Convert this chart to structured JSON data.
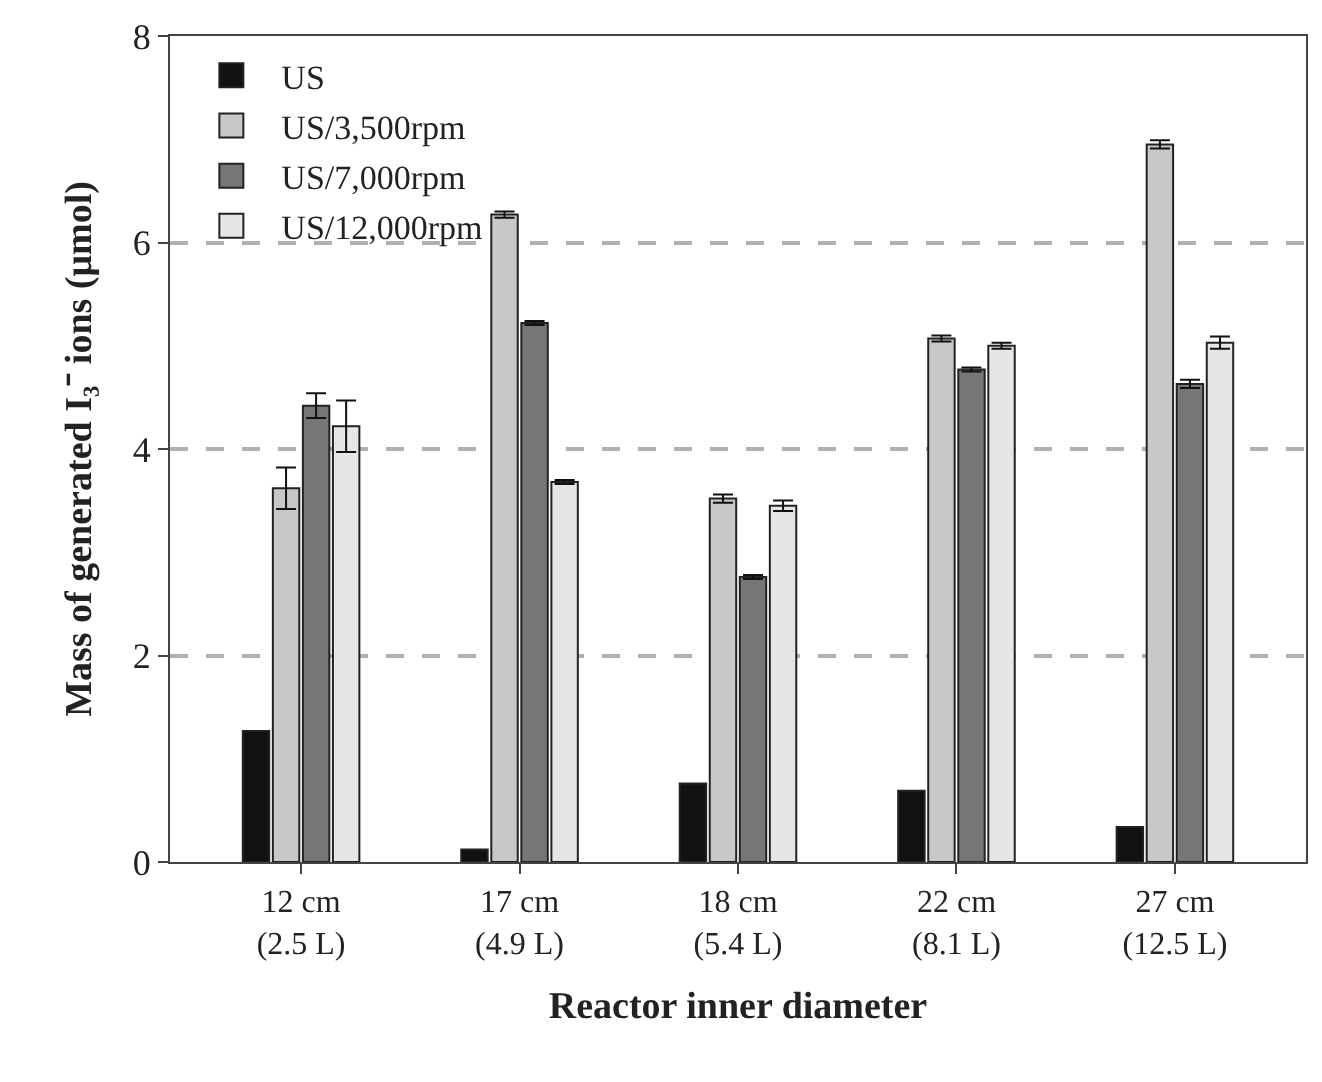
{
  "chart_data": {
    "type": "bar",
    "xlabel": "Reactor inner diameter",
    "ylabel": "Mass of generated I₃⁻ ions (μmol)",
    "categories": [
      "12 cm\n(2.5 L)",
      "17 cm\n(4.9 L)",
      "18 cm\n(5.4 L)",
      "22 cm\n(8.1 L)",
      "27 cm\n(12.5 L)"
    ],
    "series": [
      {
        "name": "US",
        "color": "#111111",
        "values": [
          1.27,
          0.12,
          0.76,
          0.69,
          0.34
        ]
      },
      {
        "name": "US/3,500rpm",
        "color": "#c8c8c8",
        "values": [
          3.62,
          6.27,
          3.52,
          5.07,
          6.95
        ],
        "errors": [
          0.2,
          0.03,
          0.04,
          0.03,
          0.04
        ]
      },
      {
        "name": "US/7,000rpm",
        "color": "#767676",
        "values": [
          4.42,
          5.22,
          2.76,
          4.77,
          4.63
        ],
        "errors": [
          0.12,
          0.02,
          0.02,
          0.02,
          0.04
        ]
      },
      {
        "name": "US/12,000rpm",
        "color": "#e6e6e6",
        "values": [
          4.22,
          3.68,
          3.45,
          5.0,
          5.03
        ],
        "errors": [
          0.25,
          0.02,
          0.05,
          0.03,
          0.06
        ]
      }
    ],
    "ylim": [
      0,
      8
    ],
    "yticks": [
      0,
      2,
      4,
      6,
      8
    ],
    "grid": "y",
    "legend": "top left"
  }
}
